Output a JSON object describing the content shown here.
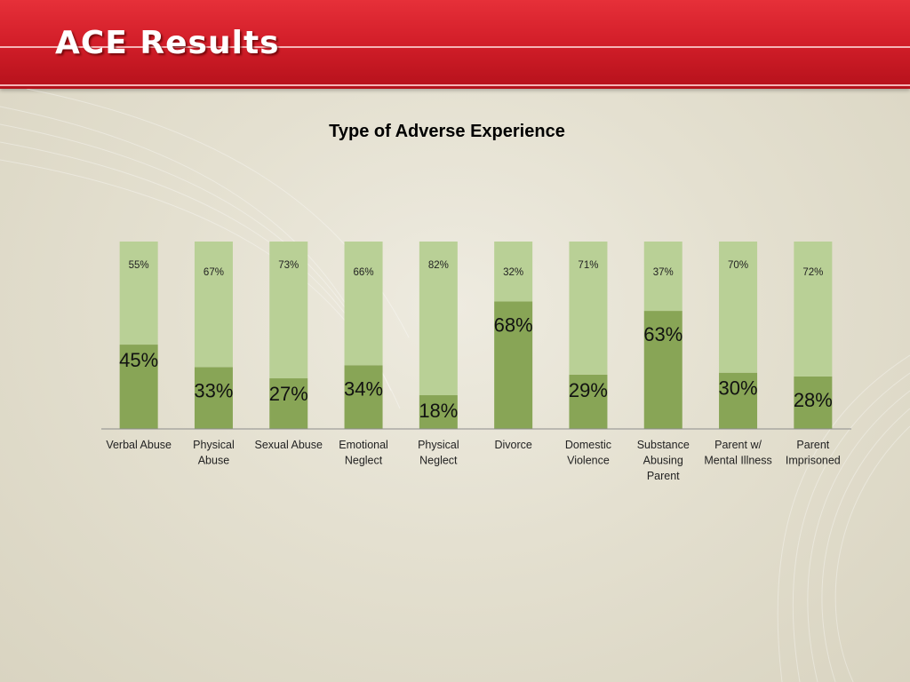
{
  "slide": {
    "title": "ACE Results"
  },
  "chart_data": {
    "type": "bar",
    "stacked": true,
    "title": "Type of Adverse Experience",
    "xlabel": "",
    "ylabel": "",
    "ylim": [
      0,
      100
    ],
    "grid": false,
    "legend": "none",
    "categories": [
      [
        "Verbal Abuse"
      ],
      [
        "Physical",
        "Abuse"
      ],
      [
        "Sexual Abuse"
      ],
      [
        "Emotional",
        "Neglect"
      ],
      [
        "Physical",
        "Neglect"
      ],
      [
        "Divorce"
      ],
      [
        "Domestic",
        "Violence"
      ],
      [
        "Substance",
        "Abusing",
        "Parent"
      ],
      [
        "Parent w/",
        "Mental Illness"
      ],
      [
        "Parent",
        "Imprisoned"
      ]
    ],
    "series": [
      {
        "values": [
          45,
          33,
          27,
          34,
          18,
          68,
          29,
          63,
          30,
          28
        ],
        "color": "#88a556"
      },
      {
        "values": [
          55,
          67,
          73,
          66,
          82,
          32,
          71,
          37,
          70,
          72
        ],
        "color": "#b9d096"
      }
    ],
    "data_label_suffix": "%"
  }
}
